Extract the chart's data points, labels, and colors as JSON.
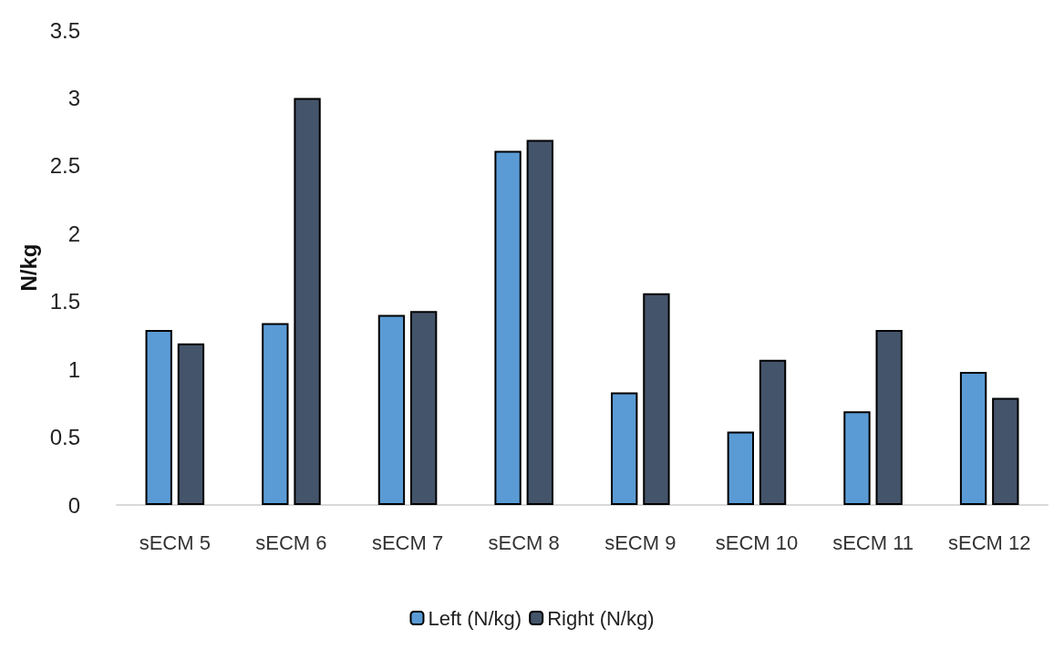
{
  "chart_data": {
    "type": "bar",
    "ylabel": "N/kg",
    "categories": [
      "sECM 5",
      "sECM 6",
      "sECM 7",
      "sECM 8",
      "sECM 9",
      "sECM 10",
      "sECM 11",
      "sECM 12"
    ],
    "series": [
      {
        "name": "Left (N/kg)",
        "color": "#5b9bd5",
        "values": [
          1.29,
          1.34,
          1.4,
          2.61,
          0.83,
          0.54,
          0.69,
          0.98
        ]
      },
      {
        "name": "Right (N/kg)",
        "color": "#44546a",
        "values": [
          1.19,
          3.0,
          1.43,
          2.69,
          1.56,
          1.07,
          1.29,
          0.79
        ]
      }
    ],
    "ylim": [
      0,
      3.5
    ],
    "yticks": [
      0,
      0.5,
      1,
      1.5,
      2,
      2.5,
      3,
      3.5
    ],
    "grid": false,
    "legend": "bottom"
  }
}
